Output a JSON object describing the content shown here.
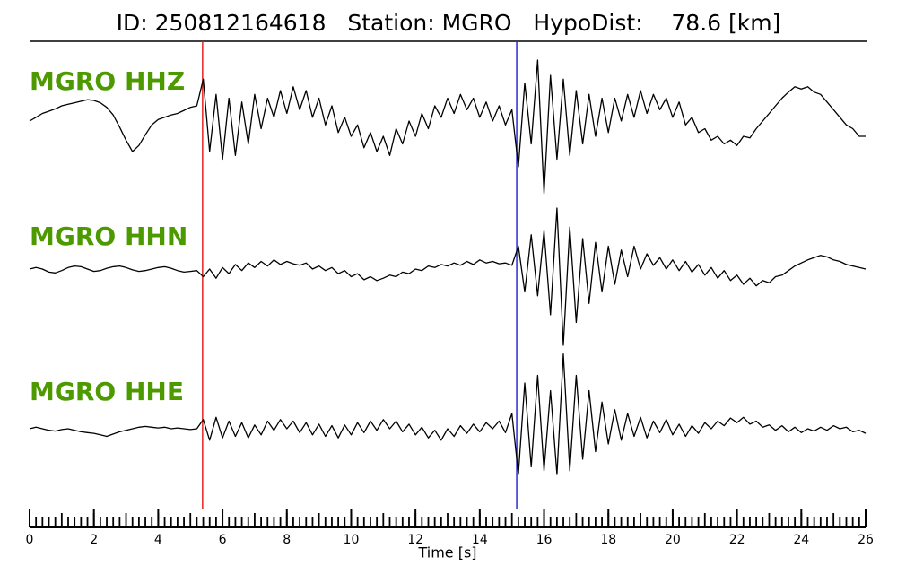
{
  "chart_data": {
    "type": "seismogram",
    "title": "ID: 250812164618   Station: MGRO   HypoDist:    78.6 [km]",
    "xlabel": "Time [s]",
    "xlim": [
      0,
      26
    ],
    "xticks": [
      0,
      2,
      4,
      6,
      8,
      10,
      12,
      14,
      16,
      18,
      20,
      22,
      24,
      26
    ],
    "xminorticks": [
      0,
      0.2,
      0.4,
      0.6,
      0.8,
      1,
      1.2,
      1.4,
      1.6,
      1.8,
      2,
      2.2,
      2.4,
      2.6,
      2.8,
      3,
      3.2,
      3.4,
      3.6,
      3.8,
      4,
      4.2,
      4.4,
      4.6,
      4.8,
      5,
      5.2,
      5.4,
      5.6,
      5.8,
      6,
      6.2,
      6.4,
      6.6,
      6.8,
      7,
      7.2,
      7.4,
      7.6,
      7.8,
      8,
      8.2,
      8.4,
      8.6,
      8.8,
      9,
      9.2,
      9.4,
      9.6,
      9.8,
      10,
      10.2,
      10.4,
      10.6,
      10.8,
      11,
      11.2,
      11.4,
      11.6,
      11.8,
      12,
      12.2,
      12.4,
      12.6,
      12.8,
      13,
      13.2,
      13.4,
      13.6,
      13.8,
      14,
      14.2,
      14.4,
      14.6,
      14.8,
      15,
      15.2,
      15.4,
      15.6,
      15.8,
      16,
      16.2,
      16.4,
      16.6,
      16.8,
      17,
      17.2,
      17.4,
      17.6,
      17.8,
      18,
      18.2,
      18.4,
      18.6,
      18.8,
      19,
      19.2,
      19.4,
      19.6,
      19.8,
      20,
      20.2,
      20.4,
      20.6,
      20.8,
      21,
      21.2,
      21.4,
      21.6,
      21.8,
      22,
      22.2,
      22.4,
      22.6,
      22.8,
      23,
      23.2,
      23.4,
      23.6,
      23.8,
      24,
      24.2,
      24.4,
      24.6,
      24.8,
      25,
      25.2,
      25.4,
      25.6,
      25.8,
      26
    ],
    "x": [
      0,
      0.2,
      0.4,
      0.6,
      0.8,
      1,
      1.2,
      1.4,
      1.6,
      1.8,
      2,
      2.2,
      2.4,
      2.6,
      2.8,
      3,
      3.2,
      3.4,
      3.6,
      3.8,
      4,
      4.2,
      4.4,
      4.6,
      4.8,
      5,
      5.2,
      5.4,
      5.6,
      5.8,
      6,
      6.2,
      6.4,
      6.6,
      6.8,
      7,
      7.2,
      7.4,
      7.6,
      7.8,
      8,
      8.2,
      8.4,
      8.6,
      8.8,
      9,
      9.2,
      9.4,
      9.6,
      9.8,
      10,
      10.2,
      10.4,
      10.6,
      10.8,
      11,
      11.2,
      11.4,
      11.6,
      11.8,
      12,
      12.2,
      12.4,
      12.6,
      12.8,
      13,
      13.2,
      13.4,
      13.6,
      13.8,
      14,
      14.2,
      14.4,
      14.6,
      14.8,
      15,
      15.2,
      15.4,
      15.6,
      15.8,
      16,
      16.2,
      16.4,
      16.6,
      16.8,
      17,
      17.2,
      17.4,
      17.6,
      17.8,
      18,
      18.2,
      18.4,
      18.6,
      18.8,
      19,
      19.2,
      19.4,
      19.6,
      19.8,
      20,
      20.2,
      20.4,
      20.6,
      20.8,
      21,
      21.2,
      21.4,
      21.6,
      21.8,
      22,
      22.2,
      22.4,
      22.6,
      22.8,
      23,
      23.2,
      23.4,
      23.6,
      23.8,
      24,
      24.2,
      24.4,
      24.6,
      24.8,
      25,
      25.2,
      25.4,
      25.6,
      25.8,
      26
    ],
    "ylim": [
      -1,
      1
    ],
    "picks": [
      {
        "x": 5.38,
        "color": "#e8211f"
      },
      {
        "x": 15.15,
        "color": "#2b2bd6"
      }
    ],
    "series": [
      {
        "name": "MGRO HHZ",
        "color": "#000000",
        "values": [
          0,
          0.05,
          0.1,
          0.13,
          0.16,
          0.2,
          0.22,
          0.24,
          0.26,
          0.28,
          0.27,
          0.24,
          0.18,
          0.08,
          -0.08,
          -0.25,
          -0.4,
          -0.32,
          -0.18,
          -0.05,
          0.02,
          0.05,
          0.08,
          0.1,
          0.14,
          0.18,
          0.2,
          0.55,
          -0.4,
          0.35,
          -0.5,
          0.3,
          -0.45,
          0.25,
          -0.3,
          0.35,
          -0.1,
          0.3,
          0.05,
          0.4,
          0.1,
          0.45,
          0.15,
          0.4,
          0.05,
          0.3,
          -0.05,
          0.2,
          -0.15,
          0.05,
          -0.2,
          -0.05,
          -0.35,
          -0.15,
          -0.4,
          -0.2,
          -0.45,
          -0.1,
          -0.3,
          0,
          -0.2,
          0.1,
          -0.1,
          0.2,
          0.05,
          0.3,
          0.1,
          0.35,
          0.15,
          0.3,
          0.05,
          0.25,
          0,
          0.2,
          -0.05,
          0.15,
          -0.6,
          0.5,
          -0.3,
          0.8,
          -0.95,
          0.6,
          -0.5,
          0.55,
          -0.45,
          0.4,
          -0.3,
          0.35,
          -0.2,
          0.3,
          -0.15,
          0.3,
          0,
          0.35,
          0.05,
          0.4,
          0.1,
          0.35,
          0.15,
          0.3,
          0.05,
          0.25,
          -0.05,
          0.05,
          -0.15,
          -0.1,
          -0.25,
          -0.2,
          -0.3,
          -0.25,
          -0.32,
          -0.2,
          -0.22,
          -0.1,
          0,
          0.1,
          0.2,
          0.3,
          0.38,
          0.45,
          0.42,
          0.45,
          0.38,
          0.35,
          0.25,
          0.15,
          0.05,
          -0.05,
          -0.1,
          -0.2,
          -0.2
        ]
      },
      {
        "name": "MGRO HHN",
        "color": "#000000",
        "values": [
          0,
          0.02,
          0,
          -0.04,
          -0.05,
          -0.02,
          0.02,
          0.04,
          0.03,
          0,
          -0.03,
          -0.02,
          0.01,
          0.03,
          0.04,
          0.02,
          -0.01,
          -0.03,
          -0.02,
          0,
          0.02,
          0.03,
          0.01,
          -0.02,
          -0.04,
          -0.03,
          -0.02,
          -0.1,
          0,
          -0.12,
          0.02,
          -0.06,
          0.06,
          -0.02,
          0.08,
          0.02,
          0.1,
          0.04,
          0.12,
          0.06,
          0.1,
          0.07,
          0.05,
          0.08,
          0,
          0.04,
          -0.02,
          0.02,
          -0.06,
          -0.02,
          -0.1,
          -0.06,
          -0.14,
          -0.1,
          -0.15,
          -0.12,
          -0.08,
          -0.1,
          -0.04,
          -0.06,
          0,
          -0.02,
          0.04,
          0.02,
          0.06,
          0.04,
          0.08,
          0.05,
          0.1,
          0.06,
          0.12,
          0.08,
          0.1,
          0.07,
          0.08,
          0.05,
          0.3,
          -0.3,
          0.45,
          -0.35,
          0.5,
          -0.6,
          0.8,
          -1,
          0.55,
          -0.7,
          0.4,
          -0.45,
          0.35,
          -0.3,
          0.3,
          -0.2,
          0.25,
          -0.1,
          0.3,
          0,
          0.2,
          0.05,
          0.15,
          0,
          0.12,
          -0.02,
          0.1,
          -0.04,
          0.06,
          -0.08,
          0.02,
          -0.12,
          -0.02,
          -0.15,
          -0.08,
          -0.2,
          -0.12,
          -0.22,
          -0.15,
          -0.18,
          -0.1,
          -0.08,
          -0.02,
          0.04,
          0.08,
          0.12,
          0.15,
          0.18,
          0.16,
          0.12,
          0.1,
          0.06,
          0.04,
          0.02,
          0
        ]
      },
      {
        "name": "MGRO HHE",
        "color": "#000000",
        "values": [
          0,
          0.02,
          0,
          -0.02,
          -0.03,
          -0.01,
          0,
          -0.02,
          -0.04,
          -0.05,
          -0.06,
          -0.08,
          -0.1,
          -0.07,
          -0.04,
          -0.02,
          0,
          0.02,
          0.03,
          0.02,
          0.01,
          0.02,
          0,
          0.01,
          0,
          -0.01,
          0,
          0.12,
          -0.15,
          0.15,
          -0.12,
          0.1,
          -0.1,
          0.08,
          -0.12,
          0.05,
          -0.08,
          0.1,
          -0.02,
          0.12,
          0,
          0.1,
          -0.05,
          0.08,
          -0.08,
          0.06,
          -0.1,
          0.04,
          -0.12,
          0.05,
          -0.08,
          0.08,
          -0.05,
          0.1,
          -0.02,
          0.12,
          0,
          0.1,
          -0.04,
          0.06,
          -0.08,
          0.02,
          -0.12,
          -0.02,
          -0.15,
          0,
          -0.1,
          0.04,
          -0.06,
          0.06,
          -0.04,
          0.08,
          0,
          0.1,
          -0.05,
          0.2,
          -0.6,
          0.6,
          -0.5,
          0.7,
          -0.55,
          0.5,
          -0.6,
          0.98,
          -0.55,
          0.7,
          -0.4,
          0.5,
          -0.3,
          0.35,
          -0.2,
          0.25,
          -0.15,
          0.2,
          -0.1,
          0.15,
          -0.12,
          0.1,
          -0.05,
          0.12,
          -0.08,
          0.06,
          -0.1,
          0.04,
          -0.06,
          0.08,
          0,
          0.1,
          0.04,
          0.14,
          0.08,
          0.15,
          0.06,
          0.1,
          0.02,
          0.05,
          -0.02,
          0.04,
          -0.04,
          0.02,
          -0.05,
          0,
          -0.03,
          0.02,
          -0.02,
          0.04,
          0,
          0.02,
          -0.04,
          -0.02,
          -0.06
        ]
      }
    ]
  }
}
